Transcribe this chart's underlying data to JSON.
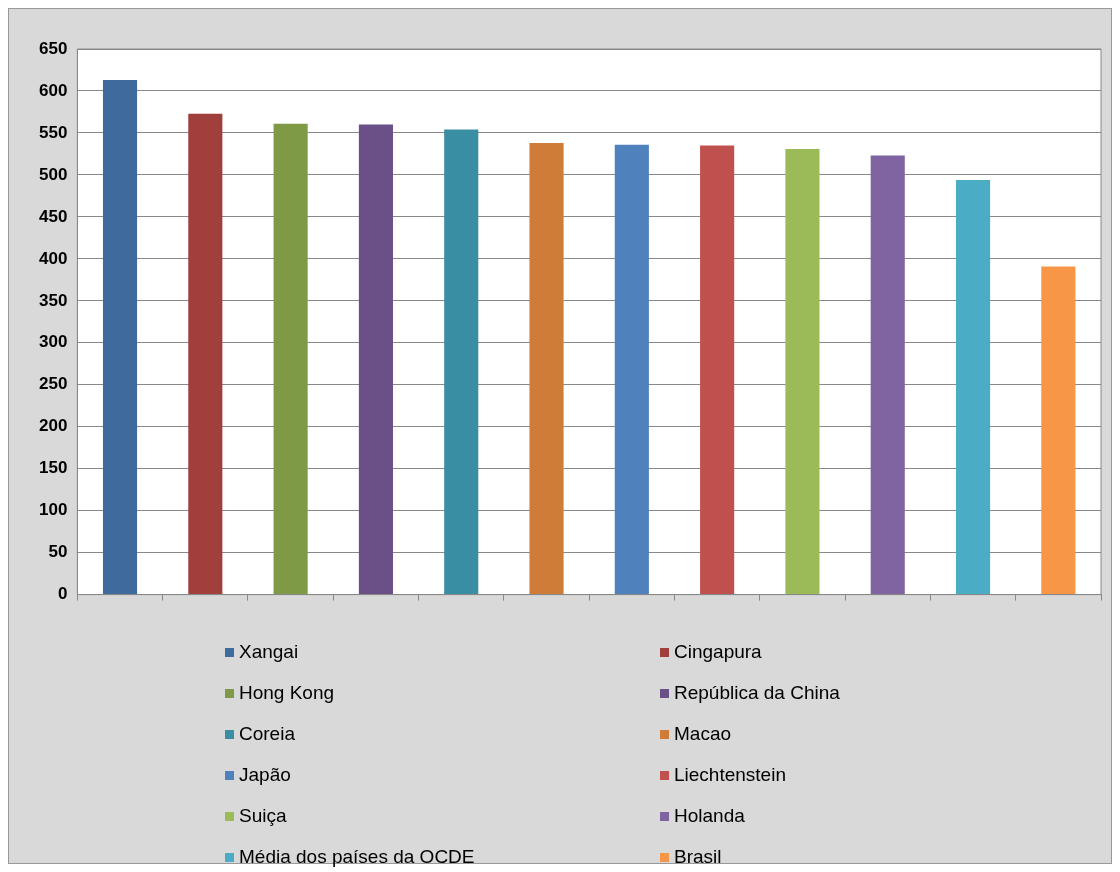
{
  "chart_data": {
    "type": "bar",
    "categories": [
      null,
      null,
      null,
      null,
      null,
      null,
      null,
      null,
      null,
      null,
      null,
      null
    ],
    "series": [
      {
        "name": "Xangai",
        "color": "#3f6a9e",
        "values": [
          613,
          null,
          null,
          null,
          null,
          null,
          null,
          null,
          null,
          null,
          null,
          null
        ]
      },
      {
        "name": "Cingapura",
        "color": "#a13f3c",
        "values": [
          null,
          573,
          null,
          null,
          null,
          null,
          null,
          null,
          null,
          null,
          null,
          null
        ]
      },
      {
        "name": "Hong Kong",
        "color": "#7f9a46",
        "values": [
          null,
          null,
          561,
          null,
          null,
          null,
          null,
          null,
          null,
          null,
          null,
          null
        ]
      },
      {
        "name": "República da China",
        "color": "#6a5087",
        "values": [
          null,
          null,
          null,
          560,
          null,
          null,
          null,
          null,
          null,
          null,
          null,
          null
        ]
      },
      {
        "name": "Coreia",
        "color": "#3a8ea3",
        "values": [
          null,
          null,
          null,
          null,
          554,
          null,
          null,
          null,
          null,
          null,
          null,
          null
        ]
      },
      {
        "name": "Macao",
        "color": "#cf7c38",
        "values": [
          null,
          null,
          null,
          null,
          null,
          538,
          null,
          null,
          null,
          null,
          null,
          null
        ]
      },
      {
        "name": "Japão",
        "color": "#4f81bd",
        "values": [
          null,
          null,
          null,
          null,
          null,
          null,
          536,
          null,
          null,
          null,
          null,
          null
        ]
      },
      {
        "name": "Liechtenstein",
        "color": "#c0504d",
        "values": [
          null,
          null,
          null,
          null,
          null,
          null,
          null,
          535,
          null,
          null,
          null,
          null
        ]
      },
      {
        "name": "Suiça",
        "color": "#9bbb59",
        "values": [
          null,
          null,
          null,
          null,
          null,
          null,
          null,
          null,
          531,
          null,
          null,
          null
        ]
      },
      {
        "name": "Holanda",
        "color": "#8064a2",
        "values": [
          null,
          null,
          null,
          null,
          null,
          null,
          null,
          null,
          null,
          523,
          null,
          null
        ]
      },
      {
        "name": "Média dos países da OCDE",
        "color": "#4bacc6",
        "values": [
          null,
          null,
          null,
          null,
          null,
          null,
          null,
          null,
          null,
          null,
          494,
          null
        ]
      },
      {
        "name": "Brasil",
        "color": "#f79646",
        "values": [
          null,
          null,
          null,
          null,
          null,
          null,
          null,
          null,
          null,
          null,
          null,
          391
        ]
      }
    ],
    "ylim": [
      0,
      650
    ],
    "yticks": [
      0,
      50,
      100,
      150,
      200,
      250,
      300,
      350,
      400,
      450,
      500,
      550,
      600,
      650
    ],
    "grid": "y",
    "legend": "bottom"
  }
}
